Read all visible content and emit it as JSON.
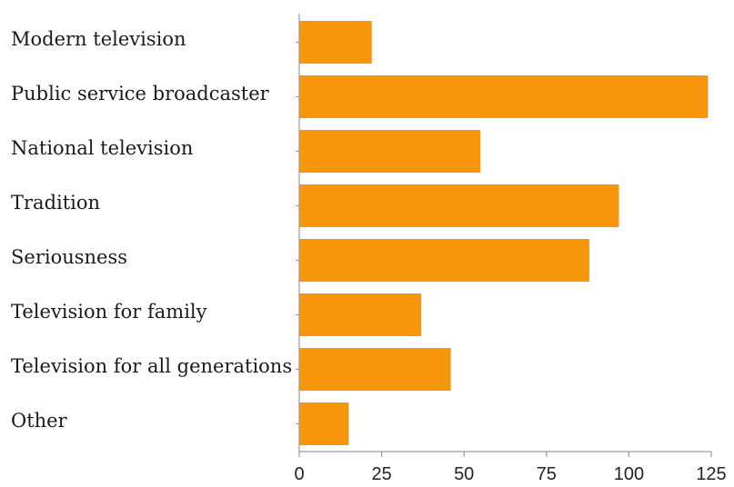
{
  "chart_data": {
    "type": "bar",
    "orientation": "horizontal",
    "categories": [
      "Modern television",
      "Public service broadcaster",
      "National television",
      "Tradition",
      "Seriousness",
      "Television for family",
      "Television for all generations",
      "Other"
    ],
    "values": [
      22,
      124,
      55,
      97,
      88,
      37,
      46,
      15
    ],
    "xlim": [
      0,
      125
    ],
    "xticks": [
      0,
      25,
      50,
      75,
      100,
      125
    ],
    "bar_color": "#f7960b",
    "grid": false,
    "title": "",
    "xlabel": "",
    "ylabel": ""
  }
}
